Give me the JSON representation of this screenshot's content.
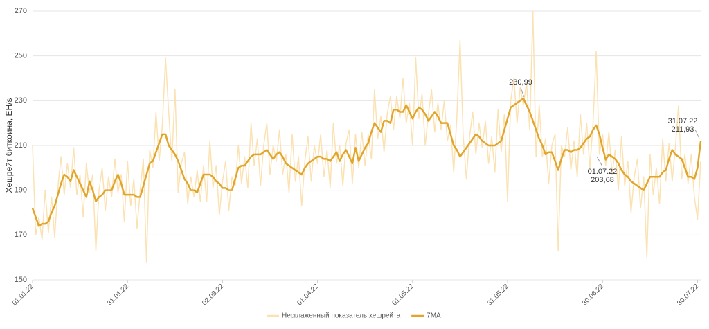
{
  "chart_data": {
    "type": "line",
    "y_label": "Хешрейт биткоина, EH/s",
    "categories": [
      "01.01.22",
      null,
      null,
      null,
      null,
      null,
      null,
      null,
      null,
      null,
      null,
      null,
      null,
      null,
      null,
      null,
      null,
      null,
      null,
      null,
      null,
      null,
      null,
      null,
      null,
      null,
      null,
      null,
      null,
      null,
      "31.01.22",
      null,
      null,
      null,
      null,
      null,
      null,
      null,
      null,
      null,
      null,
      null,
      null,
      null,
      null,
      null,
      null,
      null,
      null,
      null,
      null,
      null,
      null,
      null,
      null,
      null,
      null,
      null,
      null,
      null,
      "02.03.22",
      null,
      null,
      null,
      null,
      null,
      null,
      null,
      null,
      null,
      null,
      null,
      null,
      null,
      null,
      null,
      null,
      null,
      null,
      null,
      null,
      null,
      null,
      null,
      null,
      null,
      null,
      null,
      null,
      null,
      "01.04.22",
      null,
      null,
      null,
      null,
      null,
      null,
      null,
      null,
      null,
      null,
      null,
      null,
      null,
      null,
      null,
      null,
      null,
      null,
      null,
      null,
      null,
      null,
      null,
      null,
      null,
      null,
      null,
      null,
      null,
      "01.05.22",
      null,
      null,
      null,
      null,
      null,
      null,
      null,
      null,
      null,
      null,
      null,
      null,
      null,
      null,
      null,
      null,
      null,
      null,
      null,
      null,
      null,
      null,
      null,
      null,
      null,
      null,
      null,
      null,
      null,
      "31.05.22",
      null,
      null,
      null,
      null,
      null,
      null,
      null,
      null,
      null,
      null,
      null,
      null,
      null,
      null,
      null,
      null,
      null,
      null,
      null,
      null,
      null,
      null,
      null,
      null,
      null,
      null,
      null,
      null,
      null,
      "30.06.22",
      null,
      null,
      null,
      null,
      null,
      null,
      null,
      null,
      null,
      null,
      null,
      null,
      null,
      null,
      null,
      null,
      null,
      null,
      null,
      null,
      null,
      null,
      null,
      null,
      null,
      null,
      null,
      null,
      null,
      "30.07.22",
      null
    ],
    "series": [
      {
        "name": "Несглаженный показатель хешрейта",
        "color": "#fbe2b3",
        "values": [
          210,
          170,
          178,
          168,
          190,
          171,
          187,
          169,
          191,
          205,
          188,
          202,
          191,
          209,
          188,
          197,
          178,
          202,
          189,
          197,
          163,
          190,
          200,
          181,
          196,
          187,
          204,
          189,
          197,
          176,
          203,
          183,
          195,
          173,
          190,
          204,
          158,
          208,
          200,
          225,
          203,
          219,
          249,
          225,
          203,
          235,
          189,
          202,
          207,
          184,
          196,
          187,
          199,
          185,
          201,
          185,
          212,
          191,
          201,
          179,
          194,
          203,
          181,
          196,
          192,
          210,
          193,
          205,
          191,
          220,
          201,
          213,
          192,
          210,
          220,
          197,
          210,
          203,
          217,
          197,
          206,
          189,
          215,
          194,
          205,
          183,
          203,
          214,
          194,
          210,
          202,
          215,
          196,
          208,
          191,
          220,
          202,
          210,
          192,
          211,
          217,
          193,
          215,
          200,
          216,
          201,
          215,
          204,
          235,
          213,
          223,
          207,
          224,
          232,
          217,
          232,
          222,
          240,
          220,
          229,
          210,
          249,
          222,
          233,
          210,
          224,
          235,
          216,
          229,
          217,
          230,
          212,
          219,
          198,
          223,
          257,
          214,
          195,
          214,
          225,
          206,
          220,
          209,
          221,
          202,
          214,
          198,
          226,
          207,
          224,
          185,
          230,
          240,
          220,
          236,
          228,
          238,
          217,
          270,
          205,
          228,
          205,
          213,
          193,
          210,
          215,
          163,
          210,
          205,
          218,
          199,
          212,
          196,
          224,
          206,
          220,
          200,
          220,
          252,
          206,
          215,
          201,
          216,
          197,
          208,
          190,
          214,
          192,
          203,
          180,
          196,
          204,
          182,
          196,
          160,
          206,
          188,
          200,
          184,
          213,
          194,
          211,
          194,
          209,
          228,
          195,
          206,
          193,
          206,
          187,
          177,
          203
        ]
      },
      {
        "name": "7MA",
        "color": "#e1a52c",
        "values": [
          182,
          178,
          174,
          175,
          175,
          176,
          180,
          183,
          188,
          193,
          197,
          196,
          194,
          199,
          196,
          193,
          190,
          187,
          194,
          190,
          185,
          187,
          188,
          190,
          190,
          190,
          194,
          197,
          193,
          188,
          188,
          188,
          188,
          187,
          187,
          192,
          197,
          202,
          203,
          207,
          211,
          215,
          215,
          210,
          208,
          206,
          203,
          199,
          195,
          193,
          190,
          190,
          189,
          193,
          197,
          197,
          197,
          196,
          194,
          193,
          191,
          191,
          190,
          190,
          195,
          200,
          201,
          201,
          203,
          205,
          206,
          206,
          206,
          207,
          208,
          206,
          204,
          206,
          207,
          205,
          202,
          201,
          200,
          199,
          198,
          197,
          200,
          202,
          203,
          204,
          205,
          205,
          204,
          204,
          203,
          205,
          207,
          203,
          206,
          208,
          205,
          202,
          209,
          203,
          206,
          209,
          211,
          216,
          220,
          218,
          216,
          221,
          221,
          220,
          226,
          226,
          225,
          225,
          228,
          225,
          222,
          225,
          227,
          226,
          224,
          221,
          223,
          225,
          223,
          220,
          220,
          220,
          215,
          210,
          208,
          205,
          207,
          209,
          211,
          213,
          215,
          214,
          212,
          211,
          210,
          210,
          210,
          211,
          212,
          217,
          222,
          227,
          228,
          229,
          230,
          230.99,
          228,
          225,
          221,
          217,
          213,
          210,
          206,
          207,
          207,
          203,
          199,
          204,
          208,
          208,
          207,
          208,
          208,
          209,
          211,
          213,
          214,
          217,
          219,
          215,
          209,
          203.68,
          206,
          205,
          204,
          202,
          199,
          197,
          196,
          194,
          193,
          192,
          191,
          190,
          193,
          196,
          196,
          196,
          196,
          198,
          199,
          204,
          208,
          206,
          205,
          204,
          200,
          196,
          196,
          195,
          200,
          211.93
        ]
      }
    ],
    "annotations": [
      [
        "230,99"
      ],
      [
        "01.07.22",
        "203,68"
      ],
      [
        "31.07.22",
        "211,93"
      ]
    ],
    "ylim": [
      150,
      270
    ],
    "yticks": [
      150,
      170,
      190,
      210,
      230,
      250,
      270
    ],
    "grid": true,
    "legend": "bottom"
  }
}
